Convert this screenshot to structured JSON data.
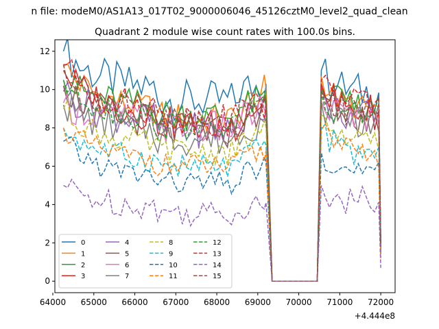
{
  "suptitle": "n file: modeM0/AS1A13_017T02_9000006046_45126cztM0_level2_quad_clean",
  "chart_data": {
    "type": "line",
    "title": "Quadrant 2 module wise count rates with 100.0s bins.",
    "xlabel": "",
    "ylabel": "",
    "x_offset_label": "+4.444e8",
    "xlim": [
      64050,
      72350
    ],
    "ylim": [
      -0.6,
      12.6
    ],
    "xticks": [
      64000,
      65000,
      66000,
      67000,
      68000,
      69000,
      70000,
      71000,
      72000
    ],
    "xtick_labels": [
      "64000",
      "65000",
      "66000",
      "67000",
      "68000",
      "69000",
      "70000",
      "71000",
      "72000"
    ],
    "yticks": [
      0,
      2,
      4,
      6,
      8,
      10,
      12
    ],
    "ytick_labels": [
      "0",
      "2",
      "4",
      "6",
      "8",
      "10",
      "12"
    ],
    "grid": false,
    "legend_position": "lower-left",
    "legend_columns": 4,
    "gaps": [
      [
        69350,
        70450
      ]
    ],
    "x_start": 64260,
    "x_step": 100,
    "series": [
      {
        "name": "0",
        "color": "#1f77b4",
        "dash": "solid",
        "start": 12.0,
        "base": 9.9,
        "tau": 900,
        "low": 8.4,
        "end": 10.3,
        "gap_peak": 11.0,
        "gap_base": 9.8,
        "gap_low": 9.0,
        "final": 1.9
      },
      {
        "name": "1",
        "color": "#ff7f0e",
        "dash": "solid",
        "start": 11.2,
        "base": 8.8,
        "tau": 900,
        "low": 7.7,
        "end": 10.0,
        "gap_peak": 10.7,
        "gap_base": 8.9,
        "gap_low": 8.4,
        "final": 1.5
      },
      {
        "name": "2",
        "color": "#2ca02c",
        "dash": "solid",
        "start": 10.5,
        "base": 9.0,
        "tau": 900,
        "low": 7.9,
        "end": 9.5,
        "gap_peak": 10.1,
        "gap_base": 9.0,
        "gap_low": 8.4,
        "final": 2.0
      },
      {
        "name": "3",
        "color": "#d62728",
        "dash": "solid",
        "start": 11.0,
        "base": 8.5,
        "tau": 900,
        "low": 7.3,
        "end": 9.4,
        "gap_peak": 10.3,
        "gap_base": 8.8,
        "gap_low": 8.0,
        "final": 2.0
      },
      {
        "name": "4",
        "color": "#9467bd",
        "dash": "solid",
        "start": 9.9,
        "base": 8.3,
        "tau": 900,
        "low": 7.0,
        "end": 9.0,
        "gap_peak": 9.6,
        "gap_base": 8.5,
        "gap_low": 7.8,
        "final": 1.8
      },
      {
        "name": "5",
        "color": "#8c564b",
        "dash": "solid",
        "start": 10.2,
        "base": 8.2,
        "tau": 900,
        "low": 7.0,
        "end": 9.1,
        "gap_peak": 9.9,
        "gap_base": 8.5,
        "gap_low": 7.7,
        "final": 1.7
      },
      {
        "name": "6",
        "color": "#e377c2",
        "dash": "solid",
        "start": 9.3,
        "base": 8.4,
        "tau": 900,
        "low": 7.2,
        "end": 9.0,
        "gap_peak": 9.4,
        "gap_base": 8.5,
        "gap_low": 8.0,
        "final": 1.8
      },
      {
        "name": "7",
        "color": "#7f7f7f",
        "dash": "solid",
        "start": 9.2,
        "base": 7.8,
        "tau": 900,
        "low": 6.6,
        "end": 8.5,
        "gap_peak": 9.3,
        "gap_base": 8.3,
        "gap_low": 7.6,
        "final": 1.6
      },
      {
        "name": "8",
        "color": "#bcbd22",
        "dash": "dashed",
        "start": 9.0,
        "base": 7.0,
        "tau": 900,
        "low": 6.2,
        "end": 8.0,
        "gap_peak": 8.7,
        "gap_base": 7.2,
        "gap_low": 6.8,
        "final": 1.5
      },
      {
        "name": "9",
        "color": "#17becf",
        "dash": "dashed",
        "start": 8.0,
        "base": 6.2,
        "tau": 900,
        "low": 5.4,
        "end": 7.1,
        "gap_peak": 8.0,
        "gap_base": 6.5,
        "gap_low": 6.0,
        "final": 1.4
      },
      {
        "name": "10",
        "color": "#1f77b4",
        "dash": "dashed",
        "start": 7.3,
        "base": 5.3,
        "tau": 900,
        "low": 4.6,
        "end": 6.2,
        "gap_peak": 6.7,
        "gap_base": 5.5,
        "gap_low": 5.0,
        "final": 1.3
      },
      {
        "name": "11",
        "color": "#ff7f0e",
        "dash": "dashed",
        "start": 8.0,
        "base": 6.2,
        "tau": 900,
        "low": 5.5,
        "end": 6.8,
        "gap_peak": 7.9,
        "gap_base": 6.5,
        "gap_low": 6.0,
        "final": 1.2
      },
      {
        "name": "12",
        "color": "#2ca02c",
        "dash": "dashed",
        "start": 10.5,
        "base": 8.4,
        "tau": 900,
        "low": 7.3,
        "end": 9.1,
        "gap_peak": 9.8,
        "gap_base": 8.7,
        "gap_low": 8.0,
        "final": 1.9
      },
      {
        "name": "13",
        "color": "#d62728",
        "dash": "dashed",
        "start": 11.3,
        "base": 8.8,
        "tau": 900,
        "low": 7.7,
        "end": 9.3,
        "gap_peak": 10.5,
        "gap_base": 9.0,
        "gap_low": 8.3,
        "final": 2.0
      },
      {
        "name": "14",
        "color": "#9467bd",
        "dash": "dashed",
        "start": 5.0,
        "base": 3.8,
        "tau": 900,
        "low": 3.0,
        "end": 4.1,
        "gap_peak": 5.0,
        "gap_base": 4.1,
        "gap_low": 3.5,
        "final": 0.7
      },
      {
        "name": "15",
        "color": "#8c564b",
        "dash": "dashed",
        "start": 11.3,
        "base": 8.6,
        "tau": 900,
        "low": 7.5,
        "end": 9.3,
        "gap_peak": 10.0,
        "gap_base": 8.7,
        "gap_low": 8.0,
        "final": 1.8
      }
    ]
  }
}
